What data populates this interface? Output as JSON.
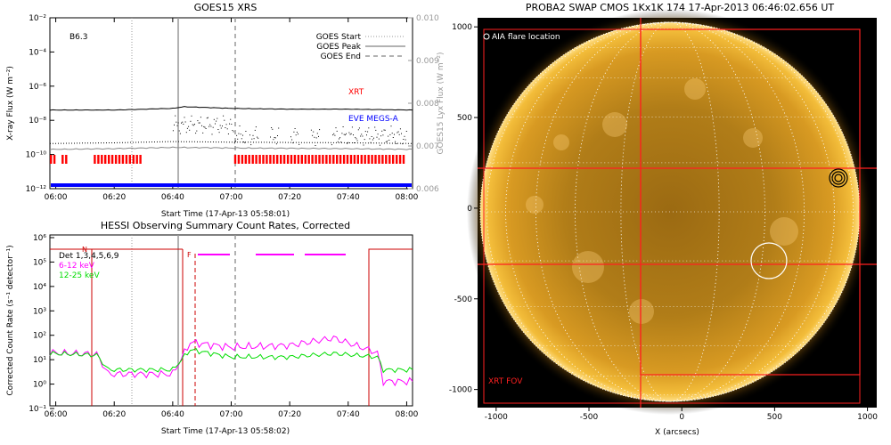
{
  "goes_panel": {
    "title": "GOES15 XRS",
    "class_label": "B6.3",
    "xlabel": "Start Time (17-Apr-13 05:58:01)",
    "ylabel_left": "X-ray Flux (W m⁻²)",
    "ylabel_right": "GOES15 Lyx Flux (W m⁻²)",
    "xticks": [
      "06:00",
      "06:20",
      "06:40",
      "07:00",
      "07:20",
      "07:40",
      "08:00"
    ],
    "yticks_left": [
      "10⁻²",
      "10⁻⁴",
      "10⁻⁶",
      "10⁻⁸",
      "10⁻¹⁰",
      "10⁻¹²"
    ],
    "yticks_right": [
      "0.010",
      "0.009",
      "0.008",
      "0.007",
      "0.006"
    ],
    "legend": [
      {
        "label": "GOES Start",
        "style": "dotted"
      },
      {
        "label": "GOES Peak",
        "style": "solid"
      },
      {
        "label": "GOES End",
        "style": "dashed"
      }
    ],
    "xrt_label": "XRT",
    "eve_label": "EVE MEGS-A",
    "colors": {
      "xrt": "#ff0000",
      "eve": "#0000ff",
      "marker": "#999999"
    }
  },
  "hessi_panel": {
    "title": "HESSI Observing Summary Count Rates, Corrected",
    "xlabel": "Start Time (17-Apr-13 05:58:02)",
    "ylabel": "Corrected Count Rate (s⁻¹ detector⁻¹)",
    "xticks": [
      "06:00",
      "06:20",
      "06:40",
      "07:00",
      "07:20",
      "07:40",
      "08:00"
    ],
    "yticks": [
      "10⁶",
      "10⁵",
      "10⁴",
      "10³",
      "10²",
      "10¹",
      "10⁰",
      "10⁻¹"
    ],
    "flag_n": "N",
    "flag_f": "F",
    "legend": [
      {
        "label": "Det 1,3,4,5,6,9",
        "color": "#000000"
      },
      {
        "label": "6-12 keV",
        "color": "#ff00ff"
      },
      {
        "label": "12-25 keV",
        "color": "#00dd00"
      }
    ]
  },
  "swap_panel": {
    "title": "PROBA2 SWAP CMOS 1Kx1K 174 17-Apr-2013 06:46:02.656 UT",
    "xlabel": "X (arcsecs)",
    "xticks": [
      "-1000",
      "-500",
      "0",
      "500",
      "1000"
    ],
    "yticks": [
      "1000",
      "500",
      "0",
      "-500",
      "-1000"
    ],
    "aia_label": "AIA flare location",
    "xrt_fov_label": "XRT FOV",
    "colors": {
      "disk": "#e8a326",
      "fov": "#ff2020"
    }
  },
  "chart_data": [
    {
      "type": "line",
      "title": "GOES15 XRS",
      "xlabel": "Start Time (17-Apr-13 05:58:01)",
      "ylabel": "X-ray Flux (W m⁻²)",
      "y_scale": "log",
      "ylim": [
        1e-12,
        0.01
      ],
      "x_range": [
        "05:58",
        "08:02"
      ],
      "series": [
        {
          "x": [
            "05:58",
            "06:20",
            "06:40",
            "06:44",
            "07:00",
            "07:20",
            "07:40",
            "08:02"
          ],
          "values": [
            4e-08,
            4e-08,
            5e-08,
            6.3e-08,
            5e-08,
            4.5e-08,
            4.5e-08,
            4e-08
          ]
        },
        {
          "x": [
            "05:58",
            "06:20",
            "06:40",
            "07:00",
            "07:20",
            "07:40",
            "08:02"
          ],
          "values": [
            2e-10,
            2.2e-10,
            2.6e-10,
            2.4e-10,
            2.3e-10,
            2.2e-10,
            2e-10
          ]
        }
      ],
      "markers": {
        "goes_start": "06:27",
        "goes_peak": "06:43",
        "goes_end": "07:03"
      },
      "right_axis": {
        "ylabel": "GOES15 Lyx Flux (W m⁻²)",
        "ylim": [
          0.006,
          0.01
        ]
      }
    },
    {
      "type": "line",
      "title": "HESSI Observing Summary Count Rates, Corrected",
      "xlabel": "Start Time (17-Apr-13 05:58:02)",
      "ylabel": "Corrected Count Rate (s⁻¹ detector⁻¹)",
      "y_scale": "log",
      "ylim": [
        0.1,
        1000000.0
      ],
      "series": [
        {
          "name": "6-12 keV",
          "x": [
            "05:58",
            "06:14",
            "06:18",
            "06:40",
            "06:46",
            "07:00",
            "07:20",
            "07:35",
            "07:50",
            "07:52",
            "08:02"
          ],
          "values": [
            15,
            13,
            2,
            2,
            40,
            25,
            30,
            60,
            15,
            1,
            1
          ]
        },
        {
          "name": "12-25 keV",
          "x": [
            "05:58",
            "06:14",
            "06:18",
            "06:40",
            "06:46",
            "07:00",
            "07:20",
            "07:35",
            "07:50",
            "07:52",
            "08:02"
          ],
          "values": [
            14,
            12,
            3,
            3,
            20,
            10,
            10,
            14,
            10,
            3,
            3
          ]
        }
      ]
    },
    {
      "type": "scatter",
      "title": "PROBA2 SWAP CMOS 1Kx1K 174 17-Apr-2013 06:46:02.656 UT",
      "xlabel": "X (arcsecs)",
      "xlim": [
        -1100,
        1050
      ],
      "ylim": [
        -1100,
        1050
      ],
      "solar_radius": 1000,
      "aia_flare_location": {
        "x": 505,
        "y": -255
      },
      "goes_contour_location": {
        "x": 900,
        "y": 195
      },
      "xrt_fov": {
        "x": [
          -215,
          1000
        ],
        "y": [
          -885,
          1005
        ]
      },
      "crosshair": {
        "x": -215,
        "y": [
          240,
          -290
        ]
      }
    }
  ]
}
